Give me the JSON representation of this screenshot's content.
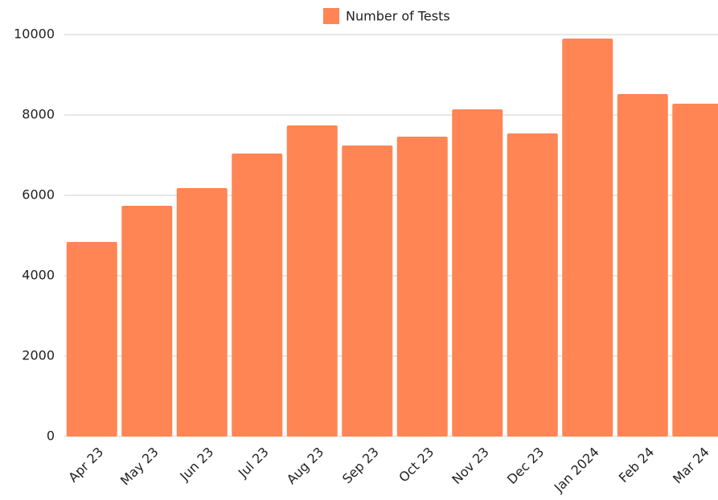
{
  "chart_data": {
    "type": "bar",
    "categories": [
      "Apr 23",
      "May 23",
      "Jun 23",
      "Jul 23",
      "Aug 23",
      "Sep 23",
      "Oct 23",
      "Nov 23",
      "Dec 23",
      "Jan 2024",
      "Feb 24",
      "Mar 24"
    ],
    "series": [
      {
        "name": "Number of Tests",
        "color": "#ff8554",
        "values": [
          4840,
          5740,
          6180,
          7040,
          7740,
          7240,
          7460,
          8140,
          7540,
          9900,
          8520,
          8280
        ]
      }
    ],
    "ylim": [
      0,
      10000
    ],
    "yticks": [
      0,
      2000,
      4000,
      6000,
      8000,
      10000
    ],
    "grid": true,
    "legend": "top"
  }
}
